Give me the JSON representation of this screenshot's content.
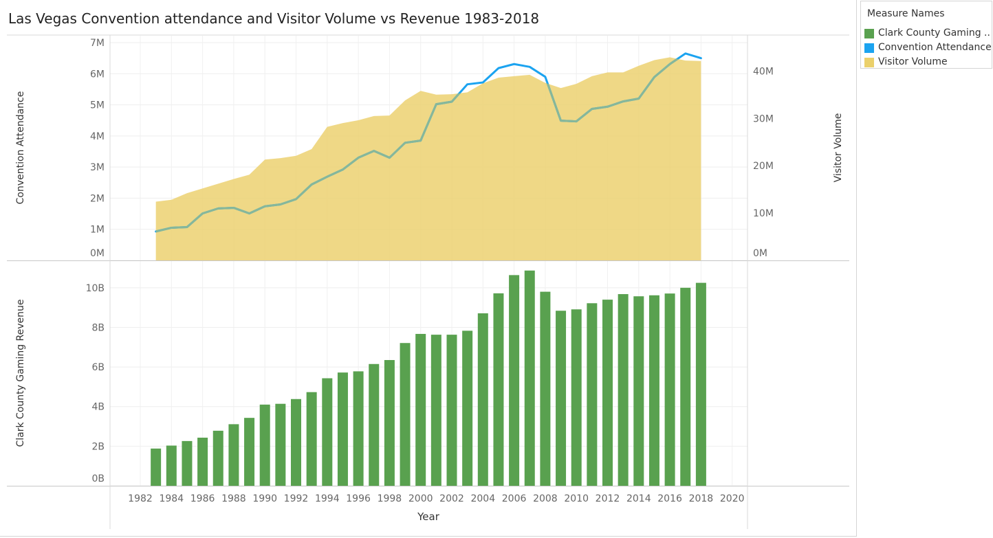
{
  "title": "Las Vegas Convention attendance and Visitor Volume vs Revenue 1983-2018",
  "legend": {
    "title": "Measure Names",
    "items": [
      {
        "label": "Clark County Gaming ..",
        "color": "#59a14f"
      },
      {
        "label": "Convention Attendance",
        "color": "#1ba3f0"
      },
      {
        "label": "Visitor Volume",
        "color": "#ebd06b"
      }
    ]
  },
  "chart_data": [
    {
      "type": "area",
      "title": "Las Vegas Convention attendance and Visitor Volume vs Revenue 1983-2018",
      "xlabel": "",
      "ylabel_left": "Convention Attendance",
      "ylabel_right": "Visitor Volume",
      "ylim_left": [
        0,
        7000000
      ],
      "ylim_right": [
        0,
        46000000
      ],
      "yticks_left": [
        "0M",
        "1M",
        "2M",
        "3M",
        "4M",
        "5M",
        "6M",
        "7M"
      ],
      "yticks_right": [
        "0M",
        "10M",
        "20M",
        "30M",
        "40M"
      ],
      "grid": true,
      "x": [
        1983,
        1984,
        1985,
        1986,
        1987,
        1988,
        1989,
        1990,
        1991,
        1992,
        1993,
        1994,
        1995,
        1996,
        1997,
        1998,
        1999,
        2000,
        2001,
        2002,
        2003,
        2004,
        2005,
        2006,
        2007,
        2008,
        2009,
        2010,
        2011,
        2012,
        2013,
        2014,
        2015,
        2016,
        2017,
        2018
      ],
      "series": [
        {
          "name": "Visitor Volume",
          "axis": "right",
          "values": [
            12400000,
            12800000,
            14200000,
            15200000,
            16200000,
            17200000,
            18100000,
            21300000,
            21600000,
            22100000,
            23500000,
            28200000,
            29000000,
            29600000,
            30500000,
            30600000,
            33800000,
            35800000,
            35000000,
            35100000,
            35500000,
            37400000,
            38600000,
            38900000,
            39200000,
            37500000,
            36400000,
            37300000,
            38900000,
            39700000,
            39700000,
            41100000,
            42300000,
            42900000,
            42200000,
            42100000
          ]
        },
        {
          "name": "Convention Attendance",
          "axis": "left",
          "values": [
            930000,
            1050000,
            1070000,
            1510000,
            1670000,
            1690000,
            1510000,
            1740000,
            1800000,
            1970000,
            2440000,
            2690000,
            2920000,
            3300000,
            3520000,
            3300000,
            3780000,
            3850000,
            5020000,
            5100000,
            5660000,
            5720000,
            6180000,
            6310000,
            6220000,
            5900000,
            4490000,
            4470000,
            4870000,
            4940000,
            5110000,
            5200000,
            5890000,
            6310000,
            6650000,
            6500000
          ]
        }
      ]
    },
    {
      "type": "bar",
      "xlabel": "Year",
      "ylabel": "Clark County Gaming Revenue",
      "ylim": [
        0,
        11000000000
      ],
      "yticks": [
        "0B",
        "2B",
        "4B",
        "6B",
        "8B",
        "10B"
      ],
      "xticks": [
        "1982",
        "1984",
        "1986",
        "1988",
        "1990",
        "1992",
        "1994",
        "1996",
        "1998",
        "2000",
        "2002",
        "2004",
        "2006",
        "2008",
        "2010",
        "2012",
        "2014",
        "2016",
        "2018",
        "2020"
      ],
      "grid": true,
      "x": [
        1983,
        1984,
        1985,
        1986,
        1987,
        1988,
        1989,
        1990,
        1991,
        1992,
        1993,
        1994,
        1995,
        1996,
        1997,
        1998,
        1999,
        2000,
        2001,
        2002,
        2003,
        2004,
        2005,
        2006,
        2007,
        2008,
        2009,
        2010,
        2011,
        2012,
        2013,
        2014,
        2015,
        2016,
        2017,
        2018
      ],
      "series": [
        {
          "name": "Clark County Gaming Revenue",
          "values": [
            1880000000,
            2030000000,
            2260000000,
            2430000000,
            2780000000,
            3110000000,
            3430000000,
            4100000000,
            4140000000,
            4380000000,
            4730000000,
            5430000000,
            5720000000,
            5780000000,
            6150000000,
            6350000000,
            7210000000,
            7670000000,
            7630000000,
            7630000000,
            7830000000,
            8710000000,
            9720000000,
            10640000000,
            10870000000,
            9800000000,
            8840000000,
            8910000000,
            9220000000,
            9400000000,
            9680000000,
            9570000000,
            9620000000,
            9710000000,
            10000000000,
            10250000000
          ]
        }
      ]
    }
  ]
}
